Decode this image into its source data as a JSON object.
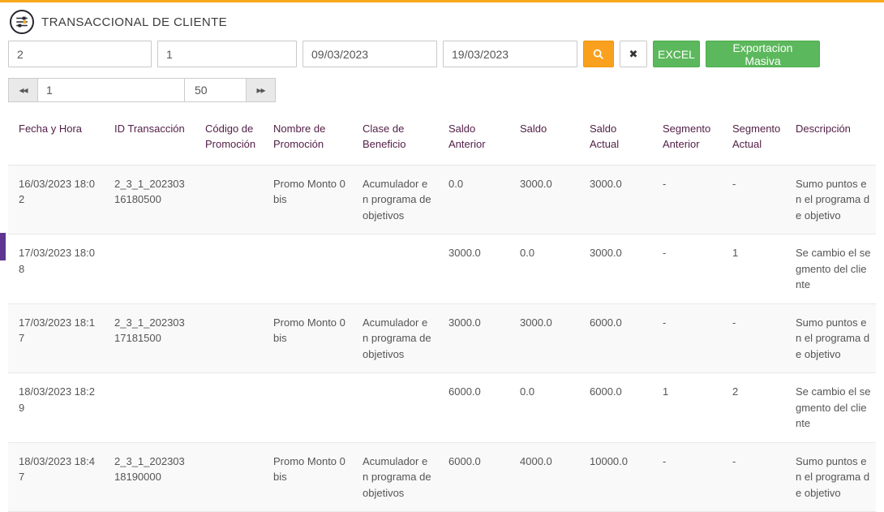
{
  "header": {
    "title": "TRANSACCIONAL DE CLIENTE"
  },
  "filters": {
    "field1_value": "2",
    "field2_value": "1",
    "date_from_value": "09/03/2023",
    "date_to_value": "19/03/2023",
    "excel_button_label": "EXCEL",
    "export_button_label": "Exportacion Masiva"
  },
  "icons": {
    "clear": "✖",
    "first_page": "◂◂",
    "last_page": "▸▸"
  },
  "pagination": {
    "page_value": "1",
    "page_size_value": "50"
  },
  "table": {
    "headers": [
      "Fecha y Hora",
      "ID Transacción",
      "Código de Promoción",
      "Nombre de Promoción",
      "Clase de Beneficio",
      "Saldo Anterior",
      "Saldo",
      "Saldo Actual",
      "Segmento Anterior",
      "Segmento Actual",
      "Descripción"
    ],
    "rows": [
      [
        "16/03/2023 18:02",
        "2_3_1_20230316180500",
        "",
        "Promo Monto 0 bis",
        "Acumulador en programa de objetivos",
        "0.0",
        "3000.0",
        "3000.0",
        "-",
        "-",
        "Sumo puntos en el programa de objetivo"
      ],
      [
        "17/03/2023 18:08",
        "",
        "",
        "",
        "",
        "3000.0",
        "0.0",
        "3000.0",
        "-",
        "1",
        "Se cambio el segmento del cliente"
      ],
      [
        "17/03/2023 18:17",
        "2_3_1_20230317181500",
        "",
        "Promo Monto 0 bis",
        "Acumulador en programa de objetivos",
        "3000.0",
        "3000.0",
        "6000.0",
        "-",
        "-",
        "Sumo puntos en el programa de objetivo"
      ],
      [
        "18/03/2023 18:29",
        "",
        "",
        "",
        "",
        "6000.0",
        "0.0",
        "6000.0",
        "1",
        "2",
        "Se cambio el segmento del cliente"
      ],
      [
        "18/03/2023 18:47",
        "2_3_1_20230318190000",
        "",
        "Promo Monto 0 bis",
        "Acumulador en programa de objetivos",
        "6000.0",
        "4000.0",
        "10000.0",
        "-",
        "-",
        "Sumo puntos en el programa de objetivo"
      ]
    ]
  },
  "colors": {
    "accent_orange": "#F9A11E",
    "top_border": "#F7A81B",
    "button_green": "#5CB85C",
    "header_text": "#511E46",
    "purple_marker": "#5E3591"
  }
}
